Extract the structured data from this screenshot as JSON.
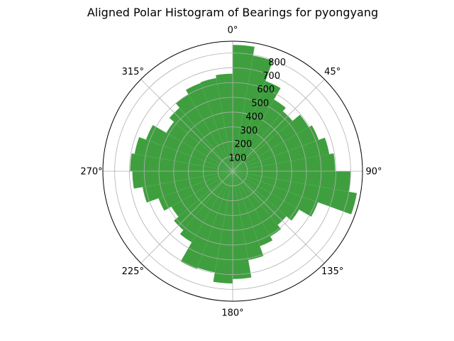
{
  "chart_data": {
    "type": "bar",
    "subtype": "polar-histogram",
    "title": "Aligned Polar Histogram of Bearings for pyongyang",
    "bar_color": "#3f9f3f",
    "grid": true,
    "theta_zero": "N",
    "theta_direction": "clockwise",
    "theta_ticks": [
      "0°",
      "45°",
      "90°",
      "135°",
      "180°",
      "225°",
      "270°",
      "315°"
    ],
    "r_ticks": [
      "100",
      "200",
      "300",
      "400",
      "500",
      "600",
      "700",
      "800"
    ],
    "r_tick_values": [
      100,
      200,
      300,
      400,
      500,
      600,
      700,
      800
    ],
    "r_max": 880,
    "bin_width_deg": 10,
    "bin_centers_deg": [
      5,
      15,
      25,
      35,
      45,
      55,
      65,
      75,
      85,
      95,
      105,
      115,
      125,
      135,
      145,
      155,
      165,
      175,
      185,
      195,
      205,
      215,
      225,
      235,
      245,
      255,
      265,
      275,
      285,
      295,
      305,
      315,
      325,
      335,
      345,
      355
    ],
    "values": [
      855,
      795,
      650,
      560,
      530,
      595,
      620,
      665,
      695,
      800,
      855,
      615,
      520,
      475,
      510,
      540,
      610,
      730,
      760,
      695,
      705,
      555,
      520,
      480,
      535,
      620,
      680,
      695,
      675,
      625,
      520,
      560,
      600,
      635,
      640,
      660
    ]
  }
}
